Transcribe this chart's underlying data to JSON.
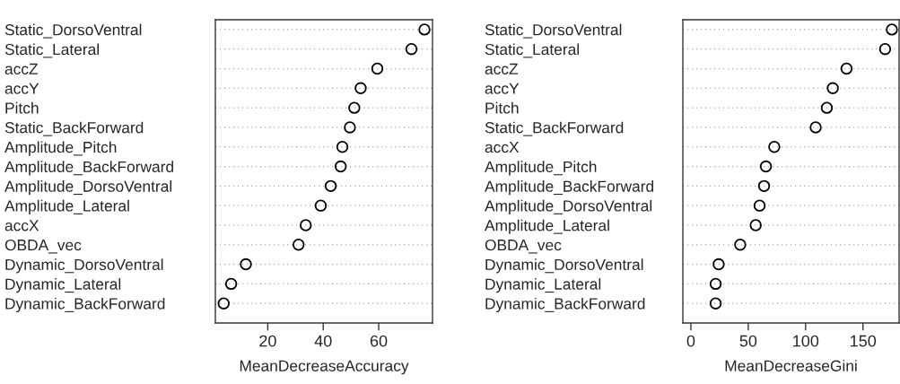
{
  "chart_data": [
    {
      "type": "scatter",
      "orientation": "horizontal",
      "xlabel": "MeanDecreaseAccuracy",
      "categories": [
        "Static_DorsoVentral",
        "Static_Lateral",
        "accZ",
        "accY",
        "Pitch",
        "Static_BackForward",
        "Amplitude_Pitch",
        "Amplitude_BackForward",
        "Amplitude_DorsoVentral",
        "Amplitude_Lateral",
        "accX",
        "OBDA_vec",
        "Dynamic_DorsoVentral",
        "Dynamic_Lateral",
        "Dynamic_BackForward"
      ],
      "values": [
        76.5,
        71.8,
        59.5,
        53.5,
        51.2,
        49.6,
        46.9,
        46.3,
        42.7,
        39.1,
        33.7,
        31.1,
        12.1,
        6.8,
        4.1
      ],
      "color": "#000000",
      "marker": "circle",
      "grid": "y",
      "xlim": [
        1.1,
        79.4
      ],
      "xticks": [
        20,
        40,
        60
      ]
    },
    {
      "type": "scatter",
      "orientation": "horizontal",
      "xlabel": "MeanDecreaseGini",
      "categories": [
        "Static_DorsoVentral",
        "Static_Lateral",
        "accZ",
        "accY",
        "Pitch",
        "Static_BackForward",
        "accX",
        "Amplitude_Pitch",
        "Amplitude_BackForward",
        "Amplitude_DorsoVentral",
        "Amplitude_Lateral",
        "OBDA_vec",
        "Dynamic_DorsoVentral",
        "Dynamic_Lateral",
        "Dynamic_BackForward"
      ],
      "values": [
        175.2,
        169.3,
        135.7,
        123.7,
        118.5,
        108.8,
        72.7,
        65.4,
        63.8,
        59.9,
        56.5,
        43,
        24.2,
        21.6,
        21.6
      ],
      "color": "#000000",
      "marker": "circle",
      "grid": "y",
      "xlim": [
        -7,
        181.5
      ],
      "xticks": [
        0,
        50,
        100,
        150
      ]
    }
  ]
}
